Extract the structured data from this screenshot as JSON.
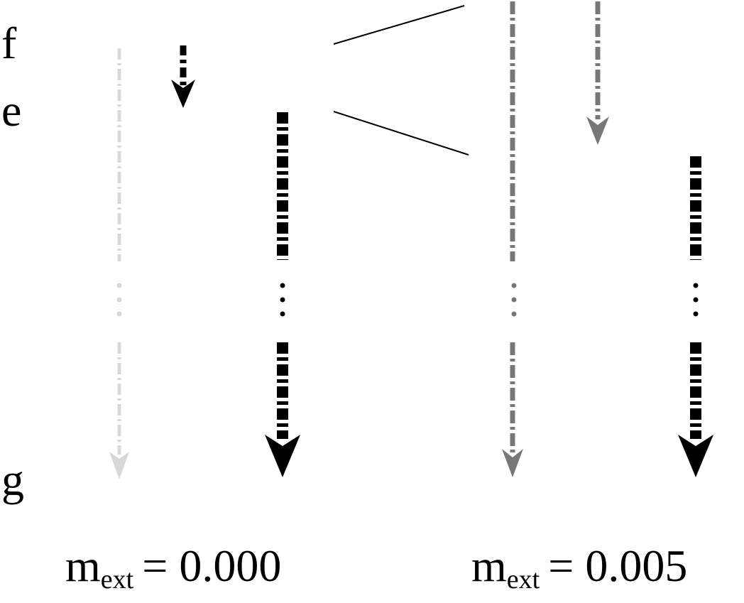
{
  "levels": {
    "f": {
      "label": "f",
      "color": "#22ee22"
    },
    "e": {
      "label": "e",
      "color": "#ff1111"
    },
    "g": {
      "label": "g",
      "color": "#0a14e0"
    }
  },
  "conditions": [
    {
      "prefix": "m",
      "subscript": "ext",
      "equals": "= 0.000"
    },
    {
      "prefix": "m",
      "subscript": "ext",
      "equals": "= 0.005"
    }
  ],
  "arrow_colors": {
    "black": "#000000",
    "gray": "#777777",
    "light_gray": "#d8d8d8",
    "connector": "#000000"
  }
}
